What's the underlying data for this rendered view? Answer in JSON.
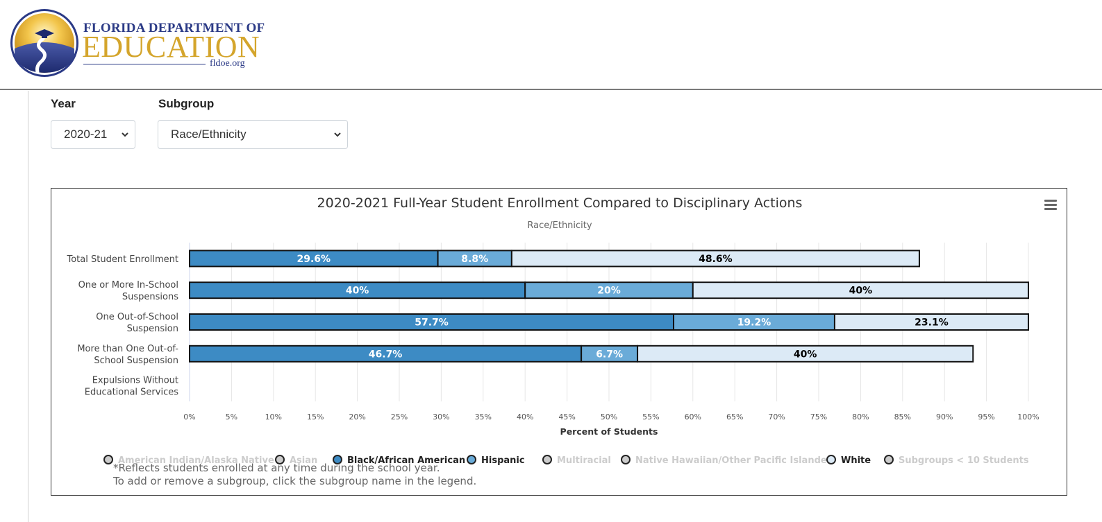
{
  "header": {
    "logo_line1": "FLORIDA DEPARTMENT OF",
    "logo_line2": "EDUCATION",
    "logo_site": "fldoe.org"
  },
  "filters": {
    "year_label": "Year",
    "year_value": "2020-21",
    "subgroup_label": "Subgroup",
    "subgroup_value": "Race/Ethnicity"
  },
  "menu_icon": "hamburger-menu-icon",
  "colors": {
    "black_african_american": "#3d8bc4",
    "hispanic": "#6aabd8",
    "white": "#dceaf6",
    "disabled_legend": "#cccccc"
  },
  "chart_data": {
    "type": "bar",
    "orientation": "horizontal",
    "stacked": true,
    "title": "2020-2021 Full-Year Student Enrollment Compared to Disciplinary Actions",
    "subtitle": "Race/Ethnicity",
    "xlabel": "Percent of Students",
    "ylabel": "",
    "xlim": [
      0,
      100
    ],
    "x_ticks": [
      "0%",
      "5%",
      "10%",
      "15%",
      "20%",
      "25%",
      "30%",
      "35%",
      "40%",
      "45%",
      "50%",
      "55%",
      "60%",
      "65%",
      "70%",
      "75%",
      "80%",
      "85%",
      "90%",
      "95%",
      "100%"
    ],
    "grid": true,
    "categories": [
      [
        "Total Student Enrollment"
      ],
      [
        "One or More In-School",
        "Suspensions"
      ],
      [
        "One Out-of-School",
        "Suspension"
      ],
      [
        "More than One Out-of-",
        "School Suspension"
      ],
      [
        "Expulsions Without",
        "Educational Services"
      ]
    ],
    "series": [
      {
        "name": "Black/African American",
        "color": "#3d8bc4",
        "label_color": "#ffffff",
        "values": [
          29.6,
          40,
          57.7,
          46.7,
          null
        ],
        "labels": [
          "29.6%",
          "40%",
          "57.7%",
          "46.7%",
          ""
        ]
      },
      {
        "name": "Hispanic",
        "color": "#6aabd8",
        "label_color": "#ffffff",
        "values": [
          8.8,
          20,
          19.2,
          6.7,
          null
        ],
        "labels": [
          "8.8%",
          "20%",
          "19.2%",
          "6.7%",
          ""
        ]
      },
      {
        "name": "White",
        "color": "#dceaf6",
        "label_color": "#000000",
        "values": [
          48.6,
          40,
          23.1,
          40,
          null
        ],
        "labels": [
          "48.6%",
          "40%",
          "23.1%",
          "40%",
          ""
        ]
      }
    ],
    "legend_position": "bottom",
    "legend": [
      {
        "name": "American Indian/Alaska Native",
        "active": false,
        "color": "#cccccc"
      },
      {
        "name": "Asian",
        "active": false,
        "color": "#cccccc"
      },
      {
        "name": "Black/African American",
        "active": true,
        "color": "#3d8bc4"
      },
      {
        "name": "Hispanic",
        "active": true,
        "color": "#6aabd8"
      },
      {
        "name": "Multiracial",
        "active": false,
        "color": "#cccccc"
      },
      {
        "name": "Native Hawaiian/Other Pacific Islander",
        "active": false,
        "color": "#cccccc"
      },
      {
        "name": "White",
        "active": true,
        "color": "#dceaf6"
      },
      {
        "name": "Subgroups < 10 Students",
        "active": false,
        "color": "#cccccc"
      }
    ]
  },
  "notes": {
    "line1": "*Reflects students enrolled at any time during the school year.",
    "line2": "To add or remove a subgroup, click the subgroup name in the legend."
  }
}
